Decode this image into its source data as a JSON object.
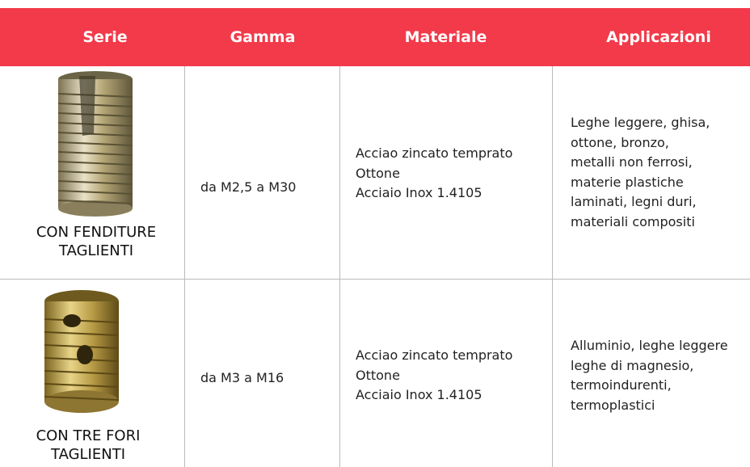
{
  "table": {
    "headers": [
      "Serie",
      "Gamma",
      "Materiale",
      "Applicazioni"
    ],
    "rows": [
      {
        "serie": [
          "CON FENDITURE",
          "TAGLIENTI"
        ],
        "gamma": "da M2,5 a M30",
        "materiale": [
          "Acciao zincato temprato",
          "Ottone",
          "Acciaio Inox 1.4105"
        ],
        "applicazioni": [
          "Leghe leggere, ghisa,",
          "ottone, bronzo,",
          "metalli non ferrosi,",
          "materie plastiche",
          "laminati, legni duri,",
          "materiali compositi"
        ]
      },
      {
        "serie": [
          "CON TRE FORI",
          "TAGLIENTI"
        ],
        "gamma": "da M3 a M16",
        "materiale": [
          "Acciao zincato temprato",
          "Ottone",
          "Acciaio Inox 1.4105"
        ],
        "applicazioni": [
          "Alluminio, leghe leggere",
          "leghe di magnesio,",
          "termoindurenti,",
          "termoplastici"
        ]
      }
    ]
  }
}
